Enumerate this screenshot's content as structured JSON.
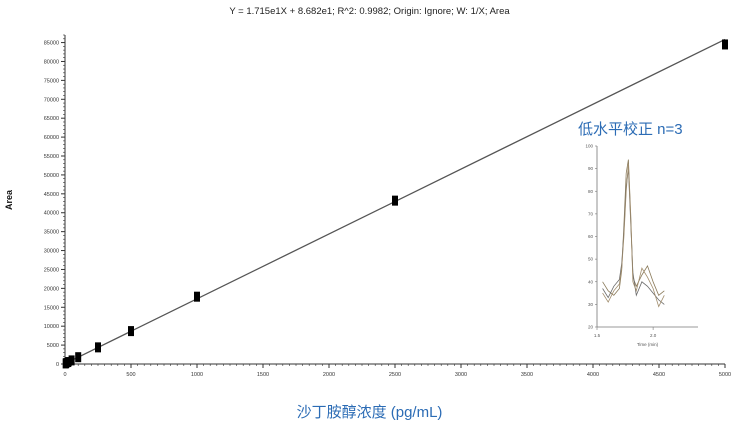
{
  "equation": "Y = 1.715e1X + 8.682e1; R^2: 0.9982; Origin: Ignore; W: 1/X; Area",
  "ylabel": "Area",
  "xlabel": "沙丁胺醇浓度 (pg/mL)",
  "inset_title": "低水平校正  n=3",
  "colors": {
    "line": "#555555",
    "marker": "#000000",
    "label_blue": "#2c6cb5",
    "axis": "#333333"
  },
  "chart_data": [
    {
      "type": "scatter",
      "title": "Y = 1.715e1X + 8.682e1; R^2: 0.9982; Origin: Ignore; W: 1/X; Area",
      "xlabel": "沙丁胺醇浓度 (pg/mL)",
      "ylabel": "Area",
      "xlim": [
        0,
        5000
      ],
      "ylim": [
        0,
        87000
      ],
      "xticks": [
        0,
        500,
        1000,
        1500,
        2000,
        2500,
        3000,
        3500,
        4000,
        4500,
        5000
      ],
      "yticks": [
        0,
        5000,
        10000,
        15000,
        20000,
        25000,
        30000,
        35000,
        40000,
        45000,
        50000,
        55000,
        60000,
        65000,
        70000,
        75000,
        80000,
        85000
      ],
      "fit": {
        "slope": 17.15,
        "intercept": 86.82
      },
      "points": [
        {
          "x": 5,
          "y": 150
        },
        {
          "x": 10,
          "y": 250
        },
        {
          "x": 25,
          "y": 520
        },
        {
          "x": 50,
          "y": 950
        },
        {
          "x": 100,
          "y": 1800
        },
        {
          "x": 250,
          "y": 4400
        },
        {
          "x": 500,
          "y": 8700
        },
        {
          "x": 1000,
          "y": 17800
        },
        {
          "x": 2500,
          "y": 43200
        },
        {
          "x": 5000,
          "y": 84500
        }
      ],
      "grid": false
    },
    {
      "type": "line",
      "title": "低水平校正  n=3",
      "xlabel": "Time (min)",
      "xlim": [
        1.5,
        2.4
      ],
      "ylim": [
        20,
        100
      ],
      "xticks": [
        1.5,
        2.0
      ],
      "yticks": [
        20,
        30,
        40,
        50,
        60,
        70,
        80,
        90,
        100
      ],
      "series": [
        {
          "x": [
            1.55,
            1.6,
            1.65,
            1.7,
            1.72,
            1.74,
            1.76,
            1.78,
            1.8,
            1.82,
            1.85,
            1.9,
            1.95,
            2.0,
            2.05,
            2.1
          ],
          "values": [
            40,
            36,
            34,
            37,
            45,
            65,
            88,
            94,
            70,
            42,
            38,
            43,
            47,
            40,
            34,
            36
          ]
        },
        {
          "x": [
            1.55,
            1.6,
            1.65,
            1.7,
            1.72,
            1.74,
            1.76,
            1.78,
            1.8,
            1.82,
            1.85,
            1.9,
            1.95,
            2.0,
            2.05,
            2.1
          ],
          "values": [
            37,
            33,
            38,
            41,
            48,
            62,
            82,
            90,
            66,
            44,
            34,
            40,
            38,
            35,
            32,
            30
          ]
        },
        {
          "x": [
            1.55,
            1.6,
            1.65,
            1.7,
            1.72,
            1.74,
            1.76,
            1.78,
            1.8,
            1.82,
            1.85,
            1.9,
            1.95,
            2.0,
            2.05,
            2.1
          ],
          "values": [
            35,
            31,
            36,
            39,
            46,
            60,
            80,
            92,
            68,
            40,
            36,
            46,
            42,
            37,
            29,
            34
          ]
        }
      ]
    }
  ]
}
